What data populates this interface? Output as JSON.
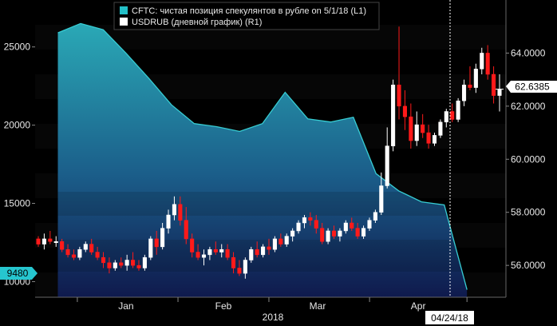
{
  "chart_data": {
    "type": "line",
    "legend": {
      "placement": "top",
      "entries": [
        {
          "name": "CFTC: чистая позиция спекулянтов в рубле on 5/1/18 (L1)",
          "color": "#23c0c8"
        },
        {
          "name": "USDRUB (дневной график) (R1)",
          "color": "#ffffff"
        }
      ]
    },
    "x_ticks": [
      "Jan",
      "Feb",
      "Mar",
      "Apr"
    ],
    "x_year_label": "2018",
    "left_axis": {
      "ticks": [
        "10000",
        "15000",
        "20000",
        "25000"
      ],
      "ylim": [
        9000,
        28000
      ]
    },
    "right_axis": {
      "ticks": [
        "56.0000",
        "58.0000",
        "60.0000",
        "62.0000",
        "64.0000"
      ],
      "ylim": [
        54.8,
        66
      ]
    },
    "left_tag": "9480",
    "right_tag": "62.6385",
    "date_tag": "04/24/18",
    "colors": {
      "area_top": "#2aa9b6",
      "area_bottom": "#0f1a4d",
      "line": "#37cdd3",
      "up": "#ffffff",
      "down": "#ff1a1a",
      "tag_bg": "#26c6cf"
    },
    "series": [
      {
        "name": "CFTC: чистая позиция спекулянтов в рубле on 5/1/18 (L1)",
        "type": "area",
        "axis": "left",
        "x": [
          "2017-12-26",
          "2018-01-02",
          "2018-01-09",
          "2018-01-16",
          "2018-01-23",
          "2018-01-30",
          "2018-02-06",
          "2018-02-13",
          "2018-02-20",
          "2018-02-27",
          "2018-03-06",
          "2018-03-13",
          "2018-03-20",
          "2018-03-27",
          "2018-04-03",
          "2018-04-10",
          "2018-04-17",
          "2018-04-24",
          "2018-05-01"
        ],
        "values": [
          25900,
          26500,
          26100,
          24600,
          23000,
          21300,
          20100,
          19900,
          19600,
          20100,
          22100,
          20400,
          20200,
          20500,
          16900,
          15800,
          15100,
          14900,
          9480
        ]
      },
      {
        "name": "USDRUB (дневной график) (R1)",
        "type": "candlestick",
        "axis": "right",
        "ohlc": [
          [
            57.0,
            57.1,
            56.7,
            56.8
          ],
          [
            56.8,
            57.2,
            56.6,
            57.0
          ],
          [
            57.0,
            57.3,
            56.8,
            56.9
          ],
          [
            56.9,
            57.1,
            56.7,
            56.9
          ],
          [
            56.9,
            57.0,
            56.5,
            56.6
          ],
          [
            56.6,
            56.8,
            56.3,
            56.4
          ],
          [
            56.4,
            56.6,
            56.2,
            56.3
          ],
          [
            56.3,
            56.7,
            56.2,
            56.6
          ],
          [
            56.6,
            56.9,
            56.5,
            56.8
          ],
          [
            56.8,
            57.0,
            56.4,
            56.5
          ],
          [
            56.5,
            56.7,
            56.2,
            56.3
          ],
          [
            56.3,
            56.5,
            55.9,
            56.1
          ],
          [
            56.1,
            56.3,
            55.7,
            55.9
          ],
          [
            55.9,
            56.2,
            55.8,
            56.1
          ],
          [
            56.1,
            56.3,
            55.9,
            56.0
          ],
          [
            56.0,
            56.4,
            55.8,
            56.2
          ],
          [
            56.2,
            56.5,
            55.9,
            56.0
          ],
          [
            56.0,
            56.2,
            55.8,
            55.9
          ],
          [
            55.9,
            56.4,
            55.8,
            56.3
          ],
          [
            56.3,
            57.1,
            56.2,
            57.0
          ],
          [
            57.0,
            57.3,
            56.4,
            56.7
          ],
          [
            56.7,
            57.6,
            56.6,
            57.4
          ],
          [
            57.4,
            58.1,
            57.2,
            57.9
          ],
          [
            57.9,
            58.6,
            57.7,
            58.3
          ],
          [
            58.3,
            58.6,
            57.5,
            57.7
          ],
          [
            57.7,
            58.2,
            56.8,
            57.0
          ],
          [
            57.0,
            57.2,
            56.3,
            56.5
          ],
          [
            56.5,
            56.8,
            56.2,
            56.3
          ],
          [
            56.3,
            56.6,
            56.0,
            56.4
          ],
          [
            56.4,
            56.7,
            56.2,
            56.6
          ],
          [
            56.6,
            56.9,
            56.4,
            56.5
          ],
          [
            56.5,
            56.8,
            56.3,
            56.6
          ],
          [
            56.6,
            56.8,
            56.2,
            56.3
          ],
          [
            56.3,
            56.5,
            55.7,
            55.9
          ],
          [
            55.9,
            56.2,
            55.6,
            55.7
          ],
          [
            55.7,
            56.3,
            55.5,
            56.2
          ],
          [
            56.2,
            56.7,
            56.1,
            56.6
          ],
          [
            56.6,
            56.9,
            56.3,
            56.4
          ],
          [
            56.4,
            56.8,
            56.3,
            56.7
          ],
          [
            56.7,
            57.0,
            56.4,
            56.6
          ],
          [
            56.6,
            57.1,
            56.5,
            57.0
          ],
          [
            57.0,
            57.2,
            56.7,
            56.8
          ],
          [
            56.8,
            57.2,
            56.7,
            57.1
          ],
          [
            57.1,
            57.4,
            56.9,
            57.3
          ],
          [
            57.3,
            57.7,
            57.2,
            57.6
          ],
          [
            57.6,
            57.9,
            57.4,
            57.8
          ],
          [
            57.8,
            58.0,
            57.5,
            57.7
          ],
          [
            57.7,
            57.9,
            57.2,
            57.4
          ],
          [
            57.4,
            57.6,
            56.8,
            56.9
          ],
          [
            56.9,
            57.4,
            56.8,
            57.3
          ],
          [
            57.3,
            57.5,
            57.0,
            57.1
          ],
          [
            57.1,
            57.4,
            56.9,
            57.3
          ],
          [
            57.3,
            57.7,
            57.2,
            57.6
          ],
          [
            57.6,
            57.8,
            57.3,
            57.4
          ],
          [
            57.4,
            57.6,
            57.0,
            57.1
          ],
          [
            57.1,
            57.5,
            57.0,
            57.4
          ],
          [
            57.4,
            57.8,
            57.3,
            57.7
          ],
          [
            57.7,
            58.1,
            57.6,
            58.0
          ],
          [
            58.0,
            59.5,
            57.9,
            59.0
          ],
          [
            59.0,
            61.2,
            58.9,
            60.5
          ],
          [
            60.5,
            63.0,
            60.3,
            62.8
          ],
          [
            62.8,
            65.0,
            61.5,
            62.0
          ],
          [
            62.0,
            62.6,
            61.1,
            61.6
          ],
          [
            61.6,
            62.1,
            60.4,
            60.7
          ],
          [
            60.7,
            61.8,
            60.5,
            61.3
          ],
          [
            61.3,
            61.7,
            60.8,
            61.0
          ],
          [
            61.0,
            61.3,
            60.4,
            60.6
          ],
          [
            60.6,
            61.0,
            60.5,
            60.9
          ],
          [
            60.9,
            61.5,
            60.8,
            61.4
          ],
          [
            61.4,
            61.9,
            61.2,
            61.8
          ],
          [
            61.8,
            62.1,
            61.4,
            61.5
          ],
          [
            61.5,
            62.3,
            61.4,
            62.2
          ],
          [
            62.2,
            63.0,
            62.0,
            62.8
          ],
          [
            62.8,
            63.5,
            62.6,
            62.7
          ],
          [
            62.7,
            63.6,
            62.5,
            63.4
          ],
          [
            63.4,
            64.2,
            63.2,
            64.0
          ],
          [
            64.0,
            64.3,
            63.0,
            63.2
          ],
          [
            63.2,
            63.5,
            62.1,
            62.4
          ],
          [
            62.4,
            63.2,
            61.8,
            62.6385
          ]
        ]
      }
    ]
  }
}
